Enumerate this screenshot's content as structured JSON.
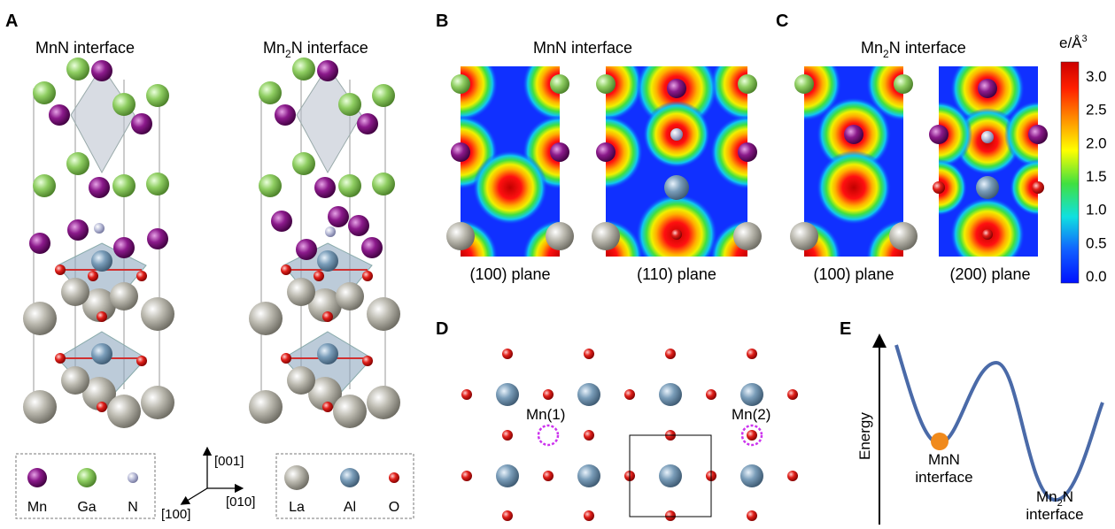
{
  "panels": {
    "A": {
      "letter": "A",
      "title_left": "MnN interface",
      "title_right_pre": "Mn",
      "title_right_sub": "2",
      "title_right_post": "N interface",
      "legend_left": [
        "Mn",
        "Ga",
        "N"
      ],
      "legend_right": [
        "La",
        "Al",
        "O"
      ],
      "axes": {
        "c": "[001]",
        "a": "[100]",
        "b": "[010]"
      }
    },
    "B": {
      "letter": "B",
      "title": "MnN interface",
      "planes": [
        "(100) plane",
        "(110) plane"
      ]
    },
    "C": {
      "letter": "C",
      "title_pre": "Mn",
      "title_sub": "2",
      "title_post": "N interface",
      "planes": [
        "(100) plane",
        "(200) plane"
      ],
      "colorbar": {
        "unit_pre": "e/Å",
        "unit_sup": "3",
        "ticks": [
          "3.0",
          "2.5",
          "2.0",
          "1.5",
          "1.0",
          "0.5",
          "0.0"
        ]
      }
    },
    "D": {
      "letter": "D",
      "site1": "Mn(1)",
      "site2": "Mn(2)"
    },
    "E": {
      "letter": "E",
      "ylabel": "Energy",
      "min1_line1": "MnN",
      "min1_line2": "interface",
      "min2_pre": "Mn",
      "min2_sub": "2",
      "min2_post": "N",
      "min2_line2": "interface"
    }
  },
  "colors": {
    "Mn": "#8b1a8b",
    "Ga": "#8fce62",
    "N": "#b9bcd8",
    "La": "#bcbab0",
    "Al": "#7a9db9",
    "O": "#e0201a",
    "curve": "#4a6aa8",
    "ball": "#f08a1c",
    "dashed_circle": "#cc33ee"
  }
}
